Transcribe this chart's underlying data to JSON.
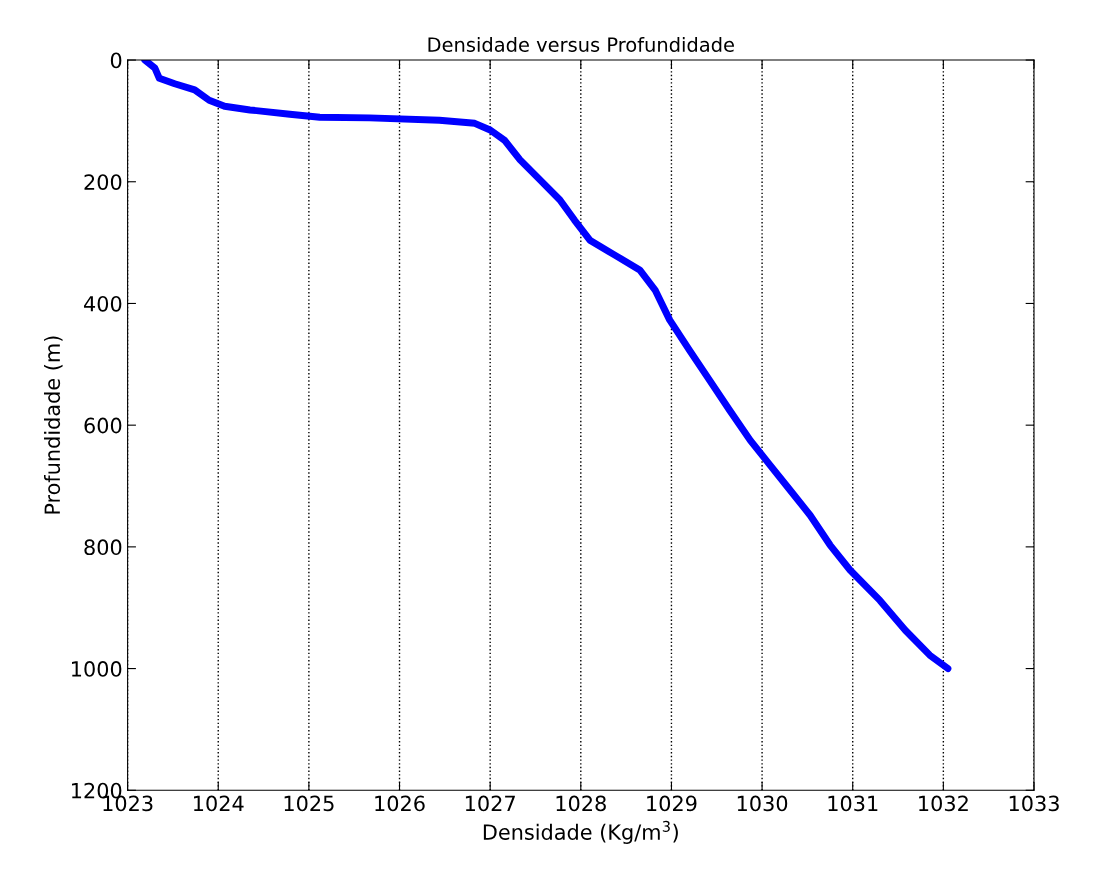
{
  "chart_data": {
    "type": "line",
    "title": "Densidade versus Profundidade",
    "xlabel": "Densidade (Kg/m$^{3}$)",
    "ylabel": "Profundidade (m)",
    "series": [
      {
        "color": "#0000ff",
        "x": [
          1023.19,
          1023.3,
          1023.35,
          1023.52,
          1023.74,
          1023.9,
          1024.07,
          1024.35,
          1024.79,
          1025.12,
          1025.67,
          1026.44,
          1026.83,
          1027.0,
          1027.16,
          1027.33,
          1027.55,
          1027.77,
          1027.93,
          1028.1,
          1028.38,
          1028.65,
          1028.82,
          1028.98,
          1029.2,
          1029.42,
          1029.64,
          1029.87,
          1030.09,
          1030.31,
          1030.53,
          1030.75,
          1030.97,
          1031.3,
          1031.58,
          1031.85,
          1032.05
        ],
        "values": [
          0,
          13,
          30,
          39,
          49,
          66,
          76,
          82,
          89,
          94,
          95,
          99,
          104,
          115,
          132,
          164,
          197,
          230,
          263,
          296,
          321,
          345,
          378,
          427,
          477,
          526,
          575,
          625,
          666,
          707,
          748,
          797,
          838,
          888,
          937,
          978,
          1000
        ]
      }
    ],
    "xlim": [
      1023,
      1033
    ],
    "xticks": [
      1023,
      1024,
      1025,
      1026,
      1027,
      1028,
      1029,
      1030,
      1031,
      1032,
      1033
    ],
    "ylim": [
      1200,
      0
    ],
    "yticks": [
      0,
      200,
      400,
      600,
      800,
      1000,
      1200
    ],
    "grid": "x",
    "line_style": "solid",
    "marker": "none"
  }
}
